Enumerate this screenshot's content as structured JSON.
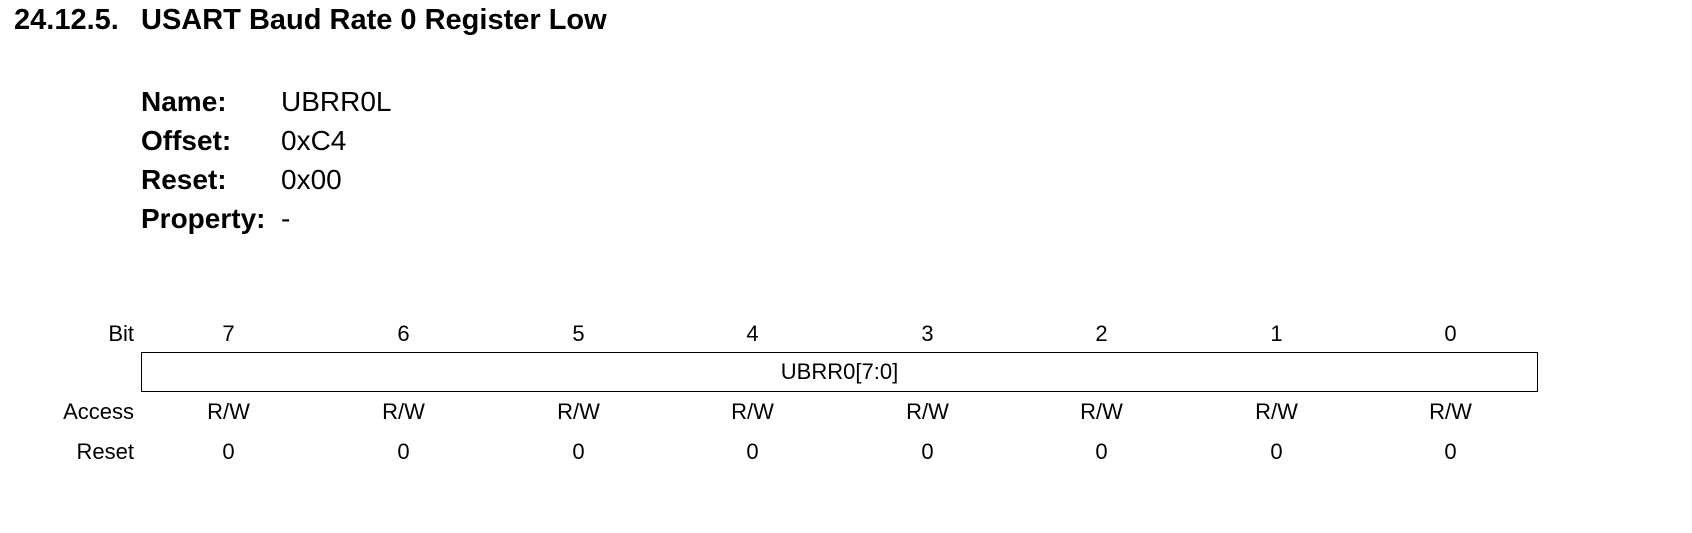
{
  "section": {
    "number": "24.12.5.",
    "title": "USART Baud Rate 0 Register Low"
  },
  "properties": [
    {
      "key": "Name:",
      "value": "UBRR0L"
    },
    {
      "key": "Offset:",
      "value": "0xC4"
    },
    {
      "key": "Reset:",
      "value": "0x00"
    },
    {
      "key": "Property:",
      "value": "-"
    }
  ],
  "register": {
    "row_labels": {
      "bit": "Bit",
      "access": "Access",
      "reset": "Reset"
    },
    "bits": [
      "7",
      "6",
      "5",
      "4",
      "3",
      "2",
      "1",
      "0"
    ],
    "field": "UBRR0[7:0]",
    "access": [
      "R/W",
      "R/W",
      "R/W",
      "R/W",
      "R/W",
      "R/W",
      "R/W",
      "R/W"
    ],
    "reset": [
      "0",
      "0",
      "0",
      "0",
      "0",
      "0",
      "0",
      "0"
    ]
  }
}
